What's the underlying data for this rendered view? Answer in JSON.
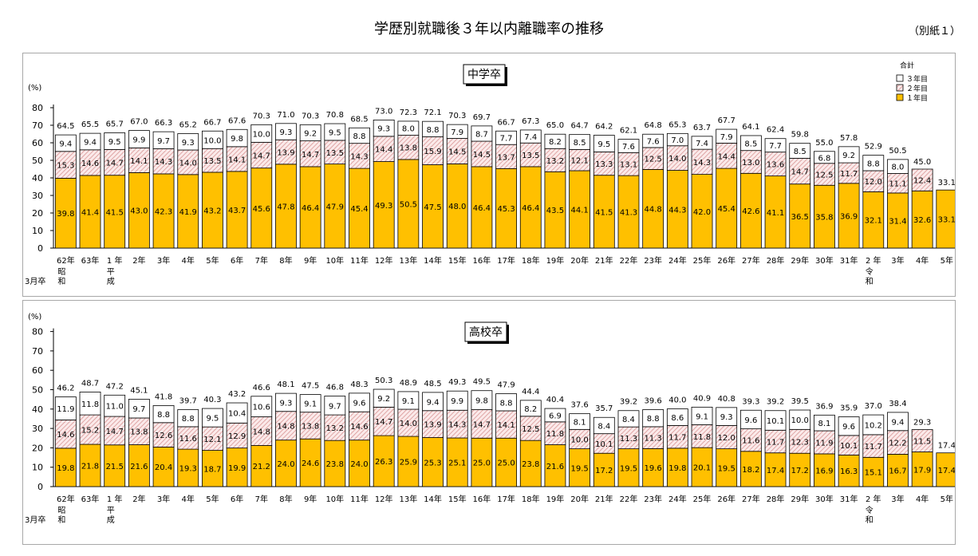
{
  "page": {
    "title": "学歴別就職後３年以内離職率の推移",
    "note": "（別紙１）"
  },
  "colors": {
    "year1": "#FFC000",
    "year2_hatch": "#D99594",
    "year3": "#FFFFFF",
    "border": "#000000"
  },
  "legend": {
    "title": "合計",
    "items": [
      "３年目",
      "２年目",
      "１年目"
    ]
  },
  "x_axis": {
    "prefix": "3月卒",
    "labels": [
      "62年",
      "63年",
      "1 年",
      "2年",
      "3年",
      "4年",
      "5年",
      "6年",
      "7年",
      "8年",
      "9年",
      "10年",
      "11年",
      "12年",
      "13年",
      "14年",
      "15年",
      "16年",
      "17年",
      "18年",
      "19年",
      "20年",
      "21年",
      "22年",
      "23年",
      "24年",
      "25年",
      "26年",
      "27年",
      "28年",
      "29年",
      "30年",
      "31年",
      "2 年",
      "3年",
      "4年",
      "5年"
    ],
    "era_labels": [
      {
        "index": 0,
        "chars": [
          "昭",
          "和"
        ]
      },
      {
        "index": 2,
        "chars": [
          "平",
          "成"
        ]
      },
      {
        "index": 33,
        "chars": [
          "令",
          "和"
        ]
      }
    ]
  },
  "chart_data": [
    {
      "type": "bar",
      "stacked": true,
      "title": "中学卒",
      "ylabel": "(%)",
      "ylim": [
        0,
        80
      ],
      "yticks": [
        0,
        10,
        20,
        30,
        40,
        50,
        60,
        70,
        80
      ],
      "legend_position": "top-right",
      "totals": [
        "64.5",
        "65.5",
        "65.7",
        "67.0",
        "66.3",
        "65.2",
        "66.7",
        "67.6",
        "70.3",
        "71.0",
        "70.3",
        "70.8",
        "68.5",
        "73.0",
        "72.3",
        "72.1",
        "70.3",
        "69.7",
        "66.7",
        "67.3",
        "65.0",
        "64.7",
        "64.2",
        "62.1",
        "64.8",
        "65.3",
        "63.7",
        "67.7",
        "64.1",
        "62.4",
        "59.8",
        "55.0",
        "57.8",
        "52.9",
        "50.5",
        "45.0",
        "33.1"
      ],
      "series": [
        {
          "name": "１年目",
          "values": [
            39.8,
            41.4,
            41.5,
            43.0,
            42.3,
            41.9,
            43.2,
            43.7,
            45.6,
            47.8,
            46.4,
            47.9,
            45.4,
            49.3,
            50.5,
            47.5,
            48.0,
            46.4,
            45.3,
            46.4,
            43.5,
            44.1,
            41.5,
            41.3,
            44.8,
            44.3,
            42.0,
            45.4,
            42.6,
            41.1,
            36.5,
            35.8,
            36.9,
            32.1,
            31.4,
            32.6,
            33.1
          ]
        },
        {
          "name": "２年目",
          "values": [
            15.3,
            14.6,
            14.7,
            14.1,
            14.3,
            14.0,
            13.5,
            14.1,
            14.7,
            13.9,
            14.7,
            13.5,
            14.3,
            14.4,
            13.8,
            15.9,
            14.5,
            14.5,
            13.7,
            13.5,
            13.2,
            12.1,
            13.3,
            13.1,
            12.5,
            14.0,
            14.3,
            14.4,
            13.0,
            13.6,
            14.7,
            12.5,
            11.7,
            12.0,
            11.1,
            12.4,
            null
          ]
        },
        {
          "name": "３年目",
          "values": [
            9.4,
            9.4,
            9.5,
            9.9,
            9.7,
            9.3,
            10.0,
            9.8,
            10.0,
            9.3,
            9.2,
            9.5,
            8.8,
            9.3,
            8.0,
            8.8,
            7.9,
            8.7,
            7.7,
            7.4,
            8.2,
            8.5,
            9.5,
            7.6,
            7.6,
            7.0,
            7.4,
            7.9,
            8.5,
            7.7,
            8.5,
            6.8,
            9.2,
            8.8,
            8.0,
            null,
            null
          ]
        }
      ]
    },
    {
      "type": "bar",
      "stacked": true,
      "title": "高校卒",
      "ylabel": "(%)",
      "ylim": [
        0,
        80
      ],
      "yticks": [
        0,
        10,
        20,
        30,
        40,
        50,
        60,
        70,
        80
      ],
      "totals": [
        "46.2",
        "48.7",
        "47.2",
        "45.1",
        "41.8",
        "39.7",
        "40.3",
        "43.2",
        "46.6",
        "48.1",
        "47.5",
        "46.8",
        "48.3",
        "50.3",
        "48.9",
        "48.5",
        "49.3",
        "49.5",
        "47.9",
        "44.4",
        "40.4",
        "37.6",
        "35.7",
        "39.2",
        "39.6",
        "40.0",
        "40.9",
        "40.8",
        "39.3",
        "39.2",
        "39.5",
        "36.9",
        "35.9",
        "37.0",
        "38.4",
        "29.3",
        "17.4"
      ],
      "series": [
        {
          "name": "１年目",
          "values": [
            19.8,
            21.8,
            21.5,
            21.6,
            20.4,
            19.3,
            18.7,
            19.9,
            21.2,
            24.0,
            24.6,
            23.8,
            24.0,
            26.3,
            25.9,
            25.3,
            25.1,
            25.0,
            25.0,
            23.8,
            21.6,
            19.5,
            17.2,
            19.5,
            19.6,
            19.8,
            20.1,
            19.5,
            18.2,
            17.4,
            17.2,
            16.9,
            16.3,
            15.1,
            16.7,
            17.9,
            17.4
          ]
        },
        {
          "name": "２年目",
          "values": [
            14.6,
            15.2,
            14.7,
            13.8,
            12.6,
            11.6,
            12.1,
            12.9,
            14.8,
            14.8,
            13.8,
            13.2,
            14.6,
            14.7,
            14.0,
            13.9,
            14.3,
            14.7,
            14.1,
            12.5,
            11.8,
            10.0,
            10.1,
            11.3,
            11.3,
            11.7,
            11.8,
            12.0,
            11.6,
            11.7,
            12.3,
            11.9,
            10.1,
            11.7,
            12.2,
            11.5,
            null
          ]
        },
        {
          "name": "３年目",
          "values": [
            11.9,
            11.8,
            11.0,
            9.7,
            8.8,
            8.8,
            9.5,
            10.4,
            10.6,
            9.3,
            9.1,
            9.7,
            9.6,
            9.2,
            9.1,
            9.4,
            9.9,
            9.8,
            8.8,
            8.2,
            6.9,
            8.1,
            8.4,
            8.4,
            8.8,
            8.6,
            9.1,
            9.3,
            9.6,
            10.1,
            10.0,
            8.1,
            9.6,
            10.2,
            9.4,
            null,
            null
          ]
        }
      ]
    }
  ]
}
